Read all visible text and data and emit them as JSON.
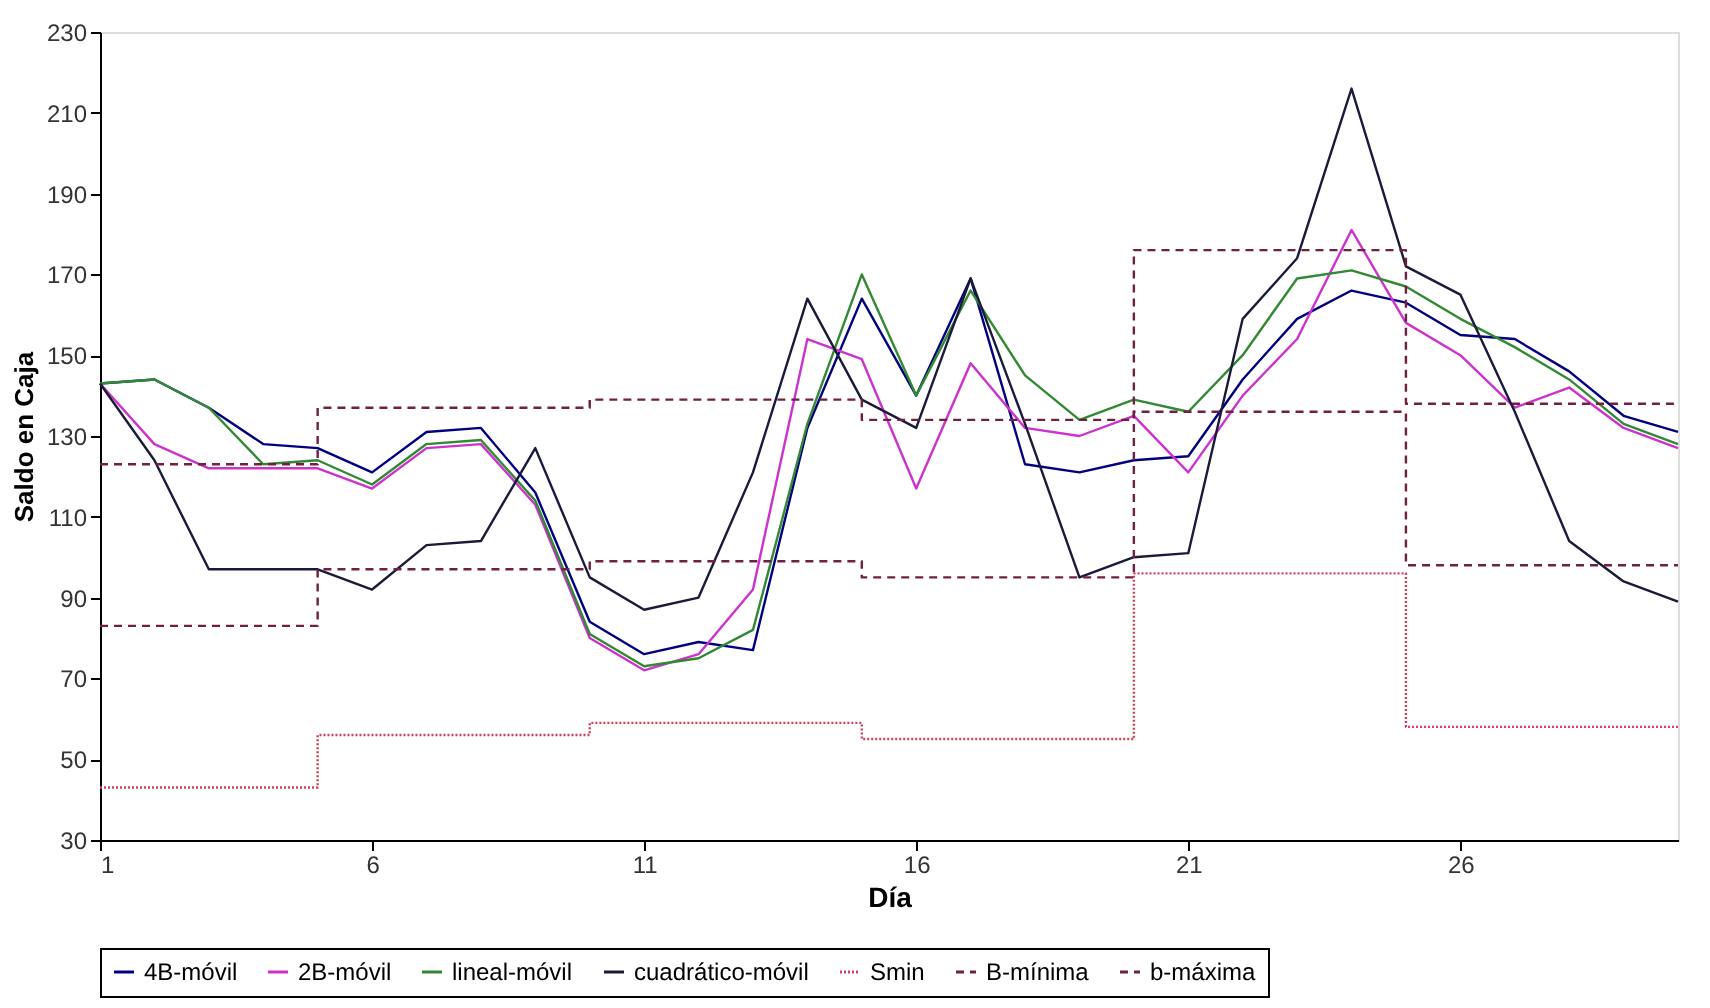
{
  "chart_data": {
    "type": "line",
    "xlabel": "Día",
    "ylabel": "Saldo en Caja",
    "x": [
      1,
      2,
      3,
      4,
      5,
      6,
      7,
      8,
      9,
      10,
      11,
      12,
      13,
      14,
      15,
      16,
      17,
      18,
      19,
      20,
      21,
      22,
      23,
      24,
      25,
      26,
      27,
      28,
      29,
      30
    ],
    "xlim": [
      1,
      30
    ],
    "xticks": [
      1,
      6,
      11,
      16,
      21,
      26
    ],
    "ylim": [
      30,
      230
    ],
    "yticks": [
      30,
      50,
      70,
      90,
      110,
      130,
      150,
      170,
      190,
      210,
      230
    ],
    "grid": false,
    "legend": "bottom",
    "marker": "none",
    "series": [
      {
        "name": "4B-móvil",
        "color": "#000080",
        "line_style": "solid",
        "values": [
          143,
          144,
          137,
          128,
          127,
          121,
          131,
          132,
          116,
          84,
          76,
          79,
          77,
          132,
          164,
          140,
          169,
          123,
          121,
          124,
          125,
          144,
          159,
          166,
          163,
          155,
          154,
          146,
          135,
          131
        ]
      },
      {
        "name": "2B-móvil",
        "color": "#cc33cc",
        "line_style": "solid",
        "values": [
          143,
          128,
          122,
          122,
          122,
          117,
          127,
          128,
          113,
          80,
          72,
          76,
          92,
          154,
          149,
          117,
          148,
          132,
          130,
          135,
          121,
          140,
          154,
          181,
          158,
          150,
          137,
          142,
          132,
          127
        ]
      },
      {
        "name": "lineal-móvil",
        "color": "#338833",
        "line_style": "solid",
        "values": [
          143,
          144,
          137,
          123,
          124,
          118,
          128,
          129,
          114,
          81,
          73,
          75,
          82,
          133,
          170,
          140,
          166,
          145,
          134,
          139,
          136,
          150,
          169,
          171,
          167,
          159,
          152,
          144,
          133,
          128
        ]
      },
      {
        "name": "cuadrático-móvil",
        "color": "#1a1a3a",
        "line_style": "solid",
        "values": [
          143,
          124,
          97,
          97,
          97,
          92,
          103,
          104,
          127,
          95,
          87,
          90,
          121,
          164,
          139,
          132,
          169,
          133,
          95,
          100,
          101,
          159,
          174,
          216,
          172,
          165,
          136,
          104,
          94,
          89
        ]
      },
      {
        "name": "Smin",
        "type": "step",
        "color": "#d04060",
        "line_style": "dotted",
        "x": [
          1,
          5,
          10,
          15,
          20,
          25,
          30
        ],
        "values": [
          43,
          56,
          59,
          55,
          96,
          58,
          58
        ]
      },
      {
        "name": "B-mínima",
        "type": "step",
        "color": "#702040",
        "line_style": "dashed",
        "x": [
          1,
          5,
          10,
          15,
          20,
          25,
          30
        ],
        "values": [
          83,
          97,
          99,
          95,
          136,
          98,
          98
        ]
      },
      {
        "name": "b-máxima",
        "type": "step",
        "color": "#702040",
        "line_style": "dashed",
        "x": [
          1,
          5,
          10,
          15,
          20,
          25,
          30
        ],
        "values": [
          123,
          137,
          139,
          134,
          176,
          138,
          138
        ]
      }
    ]
  }
}
